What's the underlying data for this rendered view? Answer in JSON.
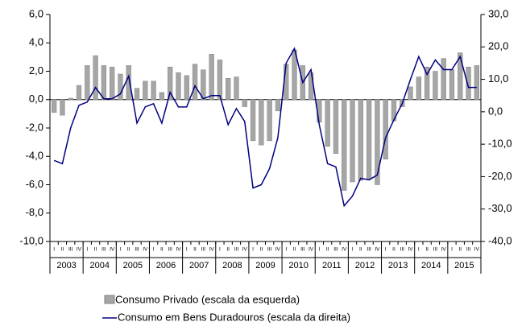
{
  "chart_data": {
    "type": "bar_line",
    "categories": [
      "I",
      "II",
      "III",
      "IV",
      "I",
      "II",
      "III",
      "IV",
      "I",
      "II",
      "III",
      "IV",
      "I",
      "II",
      "III",
      "IV",
      "I",
      "II",
      "III",
      "IV",
      "I",
      "II",
      "III",
      "IV",
      "I",
      "II",
      "III",
      "IV",
      "I",
      "II",
      "III",
      "IV",
      "I",
      "II",
      "III",
      "IV",
      "I",
      "II",
      "III",
      "IV",
      "I",
      "II",
      "III",
      "IV",
      "I",
      "II",
      "III",
      "IV",
      "I",
      "II",
      "III",
      "IV"
    ],
    "years": [
      "2003",
      "2004",
      "2005",
      "2006",
      "2007",
      "2008",
      "2009",
      "2010",
      "2011",
      "2012",
      "2013",
      "2014",
      "2015"
    ],
    "series": [
      {
        "name": "Consumo Privado (escala da esquerda)",
        "color": "#a6a6a6",
        "axis": "y",
        "values": [
          -0.9,
          -1.1,
          0.1,
          1.0,
          2.4,
          3.1,
          2.4,
          2.3,
          1.8,
          2.4,
          0.8,
          1.3,
          1.3,
          0.5,
          2.3,
          1.9,
          1.7,
          2.5,
          2.1,
          3.2,
          2.8,
          1.5,
          1.6,
          -0.5,
          -2.9,
          -3.2,
          -2.9,
          -0.8,
          2.5,
          3.5,
          2.4,
          1.9,
          -1.6,
          -3.3,
          -3.8,
          -6.4,
          -5.8,
          -5.7,
          -5.6,
          -6.0,
          -4.2,
          -1.5,
          -0.5,
          0.9,
          1.6,
          2.3,
          2.0,
          2.9,
          2.1,
          3.3,
          2.3,
          2.4
        ]
      },
      {
        "name": "Consumo em Bens Duradouros (escala da direita)",
        "color": "#000080",
        "axis": "y2",
        "values": [
          -15,
          -16,
          -5,
          2,
          3,
          7.5,
          4,
          4,
          5.5,
          11,
          -3.5,
          1.5,
          2.5,
          -3.5,
          6,
          1.5,
          1.5,
          8,
          4,
          5,
          5,
          -4,
          1,
          -3,
          -23.5,
          -22.5,
          -17.5,
          -8,
          15,
          19.5,
          9,
          13,
          -4,
          -16,
          -17,
          -29,
          -26,
          -20.5,
          -21,
          -19.5,
          -8,
          -2.5,
          2.5,
          10,
          17,
          11.5,
          16,
          13,
          13,
          17,
          7.5,
          7.5
        ]
      }
    ],
    "ylim": [
      -10,
      6
    ],
    "yticks": [
      {
        "value": -10,
        "label": "-10,0"
      },
      {
        "value": -8,
        "label": "-8,0"
      },
      {
        "value": -6,
        "label": "-6,0"
      },
      {
        "value": -4,
        "label": "-4,0"
      },
      {
        "value": -2,
        "label": "-2,0"
      },
      {
        "value": 0,
        "label": "0,0"
      },
      {
        "value": 2,
        "label": "2,0"
      },
      {
        "value": 4,
        "label": "4,0"
      },
      {
        "value": 6,
        "label": "6,0"
      }
    ],
    "y2lim": [
      -40,
      30
    ],
    "y2ticks": [
      {
        "value": -40,
        "label": "-40,0"
      },
      {
        "value": -30,
        "label": "-30,0"
      },
      {
        "value": -20,
        "label": "-20,0"
      },
      {
        "value": -10,
        "label": "-10,0"
      },
      {
        "value": 0,
        "label": "0,0"
      },
      {
        "value": 10,
        "label": "10,0"
      },
      {
        "value": 20,
        "label": "20,0"
      },
      {
        "value": 30,
        "label": "30,0"
      }
    ],
    "legend": "bottom"
  }
}
